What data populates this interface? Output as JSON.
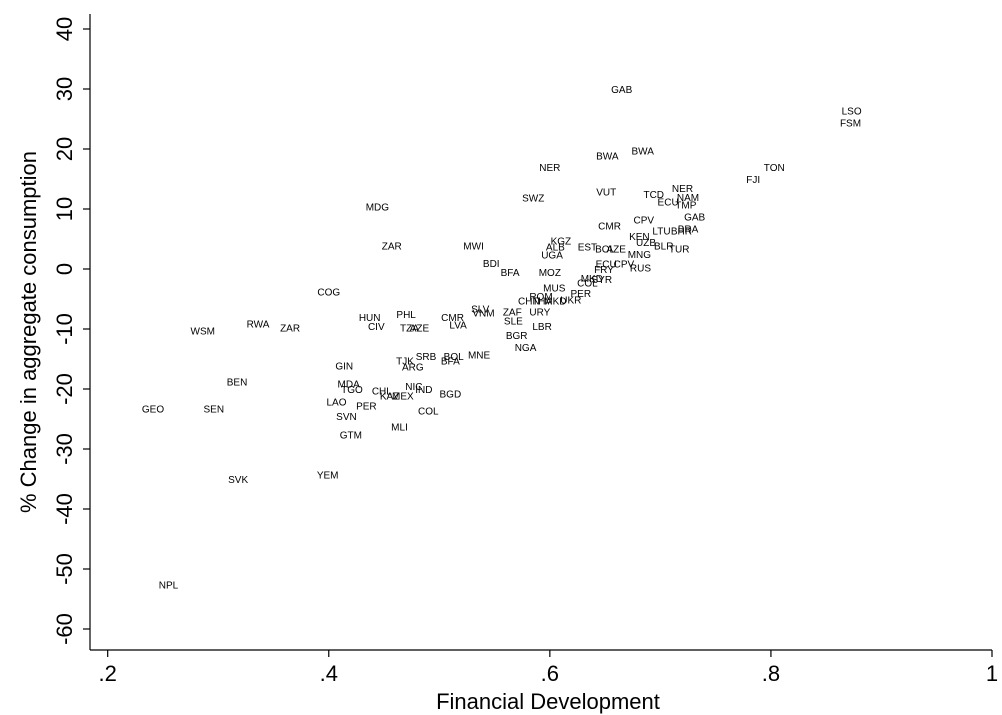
{
  "chart_data": {
    "type": "scatter",
    "x_label": "Financial Development",
    "y_label": "% Change in aggregate consumption",
    "xlim": [
      0.184,
      1.0
    ],
    "ylim": [
      -63.5,
      42.5
    ],
    "xticks": [
      {
        "value": 0.2,
        "label": ".2"
      },
      {
        "value": 0.4,
        "label": ".4"
      },
      {
        "value": 0.6,
        "label": ".6"
      },
      {
        "value": 0.8,
        "label": ".8"
      },
      {
        "value": 1,
        "label": "1"
      }
    ],
    "yticks": [
      40,
      30,
      20,
      10,
      0,
      -10,
      -20,
      -30,
      -40,
      -50,
      -60
    ],
    "color": "#000000",
    "points": [
      {
        "label": "GAB",
        "x": 0.665,
        "y": 29.8
      },
      {
        "label": "LSO",
        "x": 0.873,
        "y": 26.2
      },
      {
        "label": "FSM",
        "x": 0.872,
        "y": 24.2
      },
      {
        "label": "TON",
        "x": 0.803,
        "y": 16.8
      },
      {
        "label": "FJI",
        "x": 0.784,
        "y": 14.8
      },
      {
        "label": "BWA",
        "x": 0.652,
        "y": 18.7
      },
      {
        "label": "BWA",
        "x": 0.684,
        "y": 19.5
      },
      {
        "label": "NER",
        "x": 0.6,
        "y": 16.8
      },
      {
        "label": "NER",
        "x": 0.72,
        "y": 13.3
      },
      {
        "label": "TCD",
        "x": 0.694,
        "y": 12.3
      },
      {
        "label": "NAM",
        "x": 0.725,
        "y": 11.8
      },
      {
        "label": "ECU",
        "x": 0.707,
        "y": 11.0
      },
      {
        "label": "TMP",
        "x": 0.723,
        "y": 10.5
      },
      {
        "label": "VUT",
        "x": 0.651,
        "y": 12.7
      },
      {
        "label": "SWZ",
        "x": 0.585,
        "y": 11.7
      },
      {
        "label": "MDG",
        "x": 0.444,
        "y": 10.2
      },
      {
        "label": "GAB",
        "x": 0.731,
        "y": 8.5
      },
      {
        "label": "CMR",
        "x": 0.654,
        "y": 7.0
      },
      {
        "label": "CPV",
        "x": 0.685,
        "y": 8.0
      },
      {
        "label": "KEN",
        "x": 0.681,
        "y": 5.3
      },
      {
        "label": "LTU",
        "x": 0.701,
        "y": 6.2
      },
      {
        "label": "BHR",
        "x": 0.719,
        "y": 6.2
      },
      {
        "label": "BRA",
        "x": 0.725,
        "y": 6.5
      },
      {
        "label": "UZB",
        "x": 0.687,
        "y": 4.3
      },
      {
        "label": "BLR",
        "x": 0.703,
        "y": 3.7
      },
      {
        "label": "TUR",
        "x": 0.717,
        "y": 3.2
      },
      {
        "label": "MNG",
        "x": 0.681,
        "y": 2.3
      },
      {
        "label": "RUS",
        "x": 0.682,
        "y": 0
      },
      {
        "label": "CPV",
        "x": 0.667,
        "y": 0.7
      },
      {
        "label": "ECU",
        "x": 0.651,
        "y": 0.7
      },
      {
        "label": "FRY",
        "x": 0.649,
        "y": -0.2
      },
      {
        "label": "KGZ",
        "x": 0.61,
        "y": 4.5
      },
      {
        "label": "ALB",
        "x": 0.605,
        "y": 3.5
      },
      {
        "label": "EST",
        "x": 0.634,
        "y": 3.5
      },
      {
        "label": "BOL",
        "x": 0.65,
        "y": 3.2
      },
      {
        "label": "AZE",
        "x": 0.66,
        "y": 3.2
      },
      {
        "label": "UGA",
        "x": 0.602,
        "y": 2.2
      },
      {
        "label": "MWI",
        "x": 0.531,
        "y": 3.7
      },
      {
        "label": "ZAR",
        "x": 0.457,
        "y": 3.7
      },
      {
        "label": "BDI",
        "x": 0.547,
        "y": 0.8
      },
      {
        "label": "BFA",
        "x": 0.564,
        "y": -0.7
      },
      {
        "label": "MOZ",
        "x": 0.6,
        "y": -0.7
      },
      {
        "label": "MKD",
        "x": 0.638,
        "y": -1.7
      },
      {
        "label": "SYR",
        "x": 0.647,
        "y": -1.9
      },
      {
        "label": "COL",
        "x": 0.634,
        "y": -2.5
      },
      {
        "label": "MUS",
        "x": 0.604,
        "y": -3.3
      },
      {
        "label": "PER",
        "x": 0.628,
        "y": -4.2
      },
      {
        "label": "ROM",
        "x": 0.592,
        "y": -4.7
      },
      {
        "label": "CHN",
        "x": 0.581,
        "y": -5.5
      },
      {
        "label": "THA",
        "x": 0.593,
        "y": -5.5
      },
      {
        "label": "MKD",
        "x": 0.605,
        "y": -5.5
      },
      {
        "label": "UKR",
        "x": 0.619,
        "y": -5.3
      },
      {
        "label": "ZAF",
        "x": 0.566,
        "y": -7.3
      },
      {
        "label": "URY",
        "x": 0.591,
        "y": -7.3
      },
      {
        "label": "SLE",
        "x": 0.567,
        "y": -8.8
      },
      {
        "label": "BGR",
        "x": 0.57,
        "y": -11.2
      },
      {
        "label": "LBR",
        "x": 0.593,
        "y": -9.7
      },
      {
        "label": "NGA",
        "x": 0.578,
        "y": -13.2
      },
      {
        "label": "SLV",
        "x": 0.537,
        "y": -6.8
      },
      {
        "label": "VNM",
        "x": 0.54,
        "y": -7.5
      },
      {
        "label": "CMR",
        "x": 0.512,
        "y": -8.2
      },
      {
        "label": "LVA",
        "x": 0.517,
        "y": -9.5
      },
      {
        "label": "AZE",
        "x": 0.482,
        "y": -10
      },
      {
        "label": "TZA",
        "x": 0.473,
        "y": -10
      },
      {
        "label": "PHL",
        "x": 0.47,
        "y": -7.7
      },
      {
        "label": "HUN",
        "x": 0.437,
        "y": -8.2
      },
      {
        "label": "CIV",
        "x": 0.443,
        "y": -9.7
      },
      {
        "label": "COG",
        "x": 0.4,
        "y": -4.0
      },
      {
        "label": "RWA",
        "x": 0.336,
        "y": -9.3
      },
      {
        "label": "ZAR",
        "x": 0.365,
        "y": -10.0
      },
      {
        "label": "WSM",
        "x": 0.286,
        "y": -10.5
      },
      {
        "label": "GIN",
        "x": 0.414,
        "y": -16.3
      },
      {
        "label": "TJK",
        "x": 0.469,
        "y": -15.5
      },
      {
        "label": "SRB",
        "x": 0.488,
        "y": -14.7
      },
      {
        "label": "ARG",
        "x": 0.476,
        "y": -16.5
      },
      {
        "label": "BOL",
        "x": 0.513,
        "y": -14.7
      },
      {
        "label": "MNE",
        "x": 0.536,
        "y": -14.5
      },
      {
        "label": "BFA",
        "x": 0.51,
        "y": -15.5
      },
      {
        "label": "BEN",
        "x": 0.317,
        "y": -19
      },
      {
        "label": "MDA",
        "x": 0.418,
        "y": -19.3
      },
      {
        "label": "TGO",
        "x": 0.421,
        "y": -20.2
      },
      {
        "label": "NIC",
        "x": 0.477,
        "y": -19.7
      },
      {
        "label": "IND",
        "x": 0.486,
        "y": -20.2
      },
      {
        "label": "CHL",
        "x": 0.448,
        "y": -20.5
      },
      {
        "label": "KAZ",
        "x": 0.455,
        "y": -21.3
      },
      {
        "label": "MEX",
        "x": 0.467,
        "y": -21.3
      },
      {
        "label": "BGD",
        "x": 0.51,
        "y": -21
      },
      {
        "label": "LAO",
        "x": 0.407,
        "y": -22.3
      },
      {
        "label": "PER",
        "x": 0.434,
        "y": -23
      },
      {
        "label": "SVN",
        "x": 0.416,
        "y": -24.7
      },
      {
        "label": "COL",
        "x": 0.49,
        "y": -23.8
      },
      {
        "label": "GEO",
        "x": 0.241,
        "y": -23.5
      },
      {
        "label": "SEN",
        "x": 0.296,
        "y": -23.5
      },
      {
        "label": "MLI",
        "x": 0.464,
        "y": -26.5
      },
      {
        "label": "GTM",
        "x": 0.42,
        "y": -27.8
      },
      {
        "label": "YEM",
        "x": 0.399,
        "y": -34.5
      },
      {
        "label": "SVK",
        "x": 0.318,
        "y": -35.2
      },
      {
        "label": "NPL",
        "x": 0.255,
        "y": -52.8
      }
    ]
  }
}
